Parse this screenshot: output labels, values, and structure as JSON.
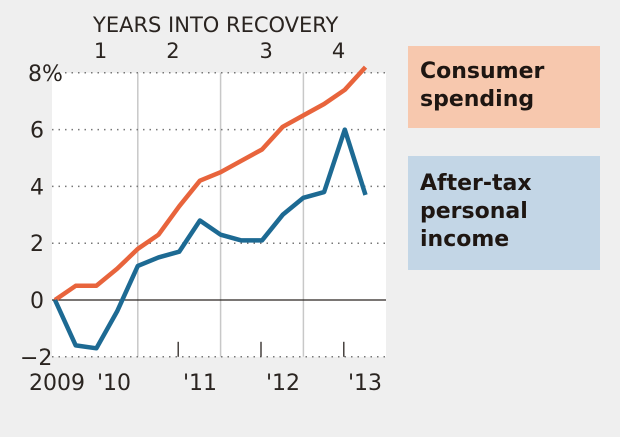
{
  "chart_data": {
    "type": "line",
    "top_axis_title": "YEARS INTO RECOVERY",
    "top_axis_ticks": [
      {
        "label": "1",
        "quarter": 2.2
      },
      {
        "label": "2",
        "quarter": 5.7
      },
      {
        "label": "3",
        "quarter": 10.2
      },
      {
        "label": "4",
        "quarter": 13.7
      }
    ],
    "x_tick_labels": [
      "2009",
      "'10",
      "'11",
      "'12",
      "'13"
    ],
    "y_ticks": [
      -2,
      0,
      2,
      4,
      6,
      8
    ],
    "y_tick_labels": [
      "−2",
      "0",
      "2",
      "4",
      "6",
      "8%"
    ],
    "ylim": [
      -2,
      8
    ],
    "grid": "horizontal dotted",
    "legend_placement": "right",
    "series": [
      {
        "name": "Consumer spending",
        "color": "#e8643c",
        "legend_bg": "#f7c8ae",
        "values": [
          0,
          0.5,
          0.5,
          1.1,
          1.8,
          2.3,
          3.3,
          4.2,
          4.5,
          4.9,
          5.3,
          6.1,
          6.5,
          6.9,
          7.4,
          8.2
        ]
      },
      {
        "name": "After-tax personal income",
        "color": "#1d6a93",
        "legend_bg": "#c3d6e6",
        "values": [
          0,
          -1.6,
          -1.7,
          -0.4,
          1.2,
          1.5,
          1.7,
          2.8,
          2.3,
          2.1,
          2.1,
          3.0,
          3.6,
          3.8,
          6.0,
          3.7
        ]
      }
    ]
  },
  "legend": {
    "consumer": "Consumer spending",
    "income": "After-tax personal income"
  }
}
